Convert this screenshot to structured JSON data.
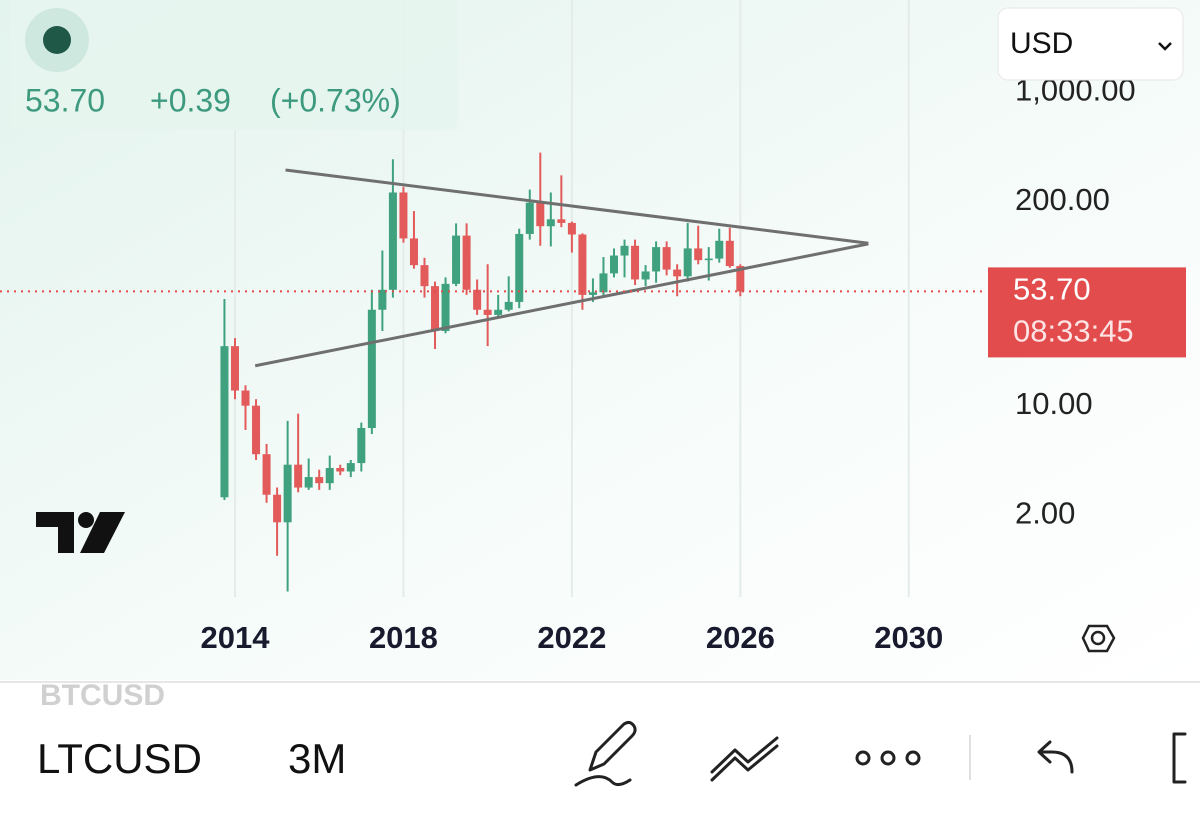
{
  "header": {
    "price": "53.70",
    "change": "+0.39",
    "change_pct": "(+0.73%)",
    "currency": "USD"
  },
  "toolbar": {
    "previous_symbol": "BTCUSD",
    "symbol": "LTCUSD",
    "interval": "3M"
  },
  "chart_data": {
    "type": "candlestick",
    "log_scale": true,
    "xgrid": true,
    "up_color": "#3fa17e",
    "down_color": "#e25a5a",
    "x": [
      2013.75,
      2014.0,
      2014.25,
      2014.5,
      2014.75,
      2015.0,
      2015.25,
      2015.5,
      2015.75,
      2016.0,
      2016.25,
      2016.5,
      2016.75,
      2017.0,
      2017.25,
      2017.5,
      2017.75,
      2018.0,
      2018.25,
      2018.5,
      2018.75,
      2019.0,
      2019.25,
      2019.5,
      2019.75,
      2020.0,
      2020.25,
      2020.5,
      2020.75,
      2021.0,
      2021.25,
      2021.5,
      2021.75,
      2022.0,
      2022.25,
      2022.5,
      2022.75,
      2023.0,
      2023.25,
      2023.5,
      2023.75,
      2024.0,
      2024.25,
      2024.5,
      2024.75,
      2025.0,
      2025.25,
      2025.5,
      2025.75,
      2026.0
    ],
    "open": [
      2.6,
      24,
      12.5,
      10,
      4.9,
      2.7,
      1.8,
      4.2,
      3.0,
      3.5,
      3.2,
      4.0,
      3.8,
      4.3,
      7.2,
      41,
      55,
      230,
      117,
      79,
      58,
      30,
      60,
      122,
      55,
      41,
      38,
      41,
      46,
      125,
      198,
      140,
      155,
      147,
      124,
      51,
      53,
      70,
      91,
      105,
      64,
      72,
      103,
      74,
      67,
      101,
      85,
      87,
      113,
      78
    ],
    "high": [
      48,
      27,
      13.5,
      11,
      5.7,
      3.0,
      8,
      8.9,
      4.6,
      3.9,
      4.8,
      4.2,
      4.5,
      7.8,
      55,
      98,
      375,
      250,
      175,
      88,
      62,
      66,
      146,
      146,
      64,
      80,
      51,
      67,
      135,
      240,
      413,
      230,
      296,
      150,
      126,
      65,
      89,
      101,
      115,
      115,
      79,
      112,
      112,
      80,
      147,
      141,
      103,
      135,
      137,
      80
    ],
    "low": [
      2.5,
      11,
      7,
      4.5,
      2.4,
      1.1,
      0.65,
      2.8,
      2.9,
      2.9,
      2.9,
      3.6,
      3.5,
      3.8,
      6.6,
      30,
      49,
      110,
      75,
      49,
      23,
      29,
      58,
      51,
      38,
      24,
      37,
      40,
      42,
      115,
      105,
      104,
      138,
      95,
      41,
      46,
      50,
      66,
      66,
      59,
      58,
      61,
      68,
      50,
      62,
      80,
      63,
      82,
      76,
      50
    ],
    "close": [
      24,
      12.5,
      10,
      4.9,
      2.7,
      1.8,
      4.2,
      3.0,
      3.5,
      3.2,
      4.0,
      3.8,
      4.3,
      7.2,
      41,
      55,
      230,
      117,
      79,
      58,
      30,
      60,
      122,
      55,
      41,
      38,
      41,
      46,
      125,
      198,
      140,
      155,
      147,
      124,
      51,
      53,
      70,
      91,
      105,
      64,
      72,
      103,
      74,
      67,
      101,
      85,
      87,
      113,
      78,
      53.7
    ],
    "xlim": [
      2008.42,
      2031.81
    ],
    "ylim": [
      0.6,
      3900
    ],
    "xticks": [
      2014,
      2018,
      2022,
      2026,
      2030
    ],
    "yticks": [
      {
        "value": 2,
        "label": "2.00"
      },
      {
        "value": 10,
        "label": "10.00"
      },
      {
        "value": 200,
        "label": "200.00"
      },
      {
        "value": 1000,
        "label": "1,000.00"
      }
    ],
    "trendlines": [
      {
        "color": "#6f6f6f",
        "x": [
          2015.2,
          2029.04
        ],
        "y": [
          320,
          109
        ]
      },
      {
        "color": "#6f6f6f",
        "x": [
          2014.48,
          2029.04
        ],
        "y": [
          18,
          108
        ]
      }
    ],
    "last_price": {
      "value": 53.7,
      "label": "53.70",
      "color": "#e24c4c"
    },
    "countdown": "08:33:45"
  }
}
